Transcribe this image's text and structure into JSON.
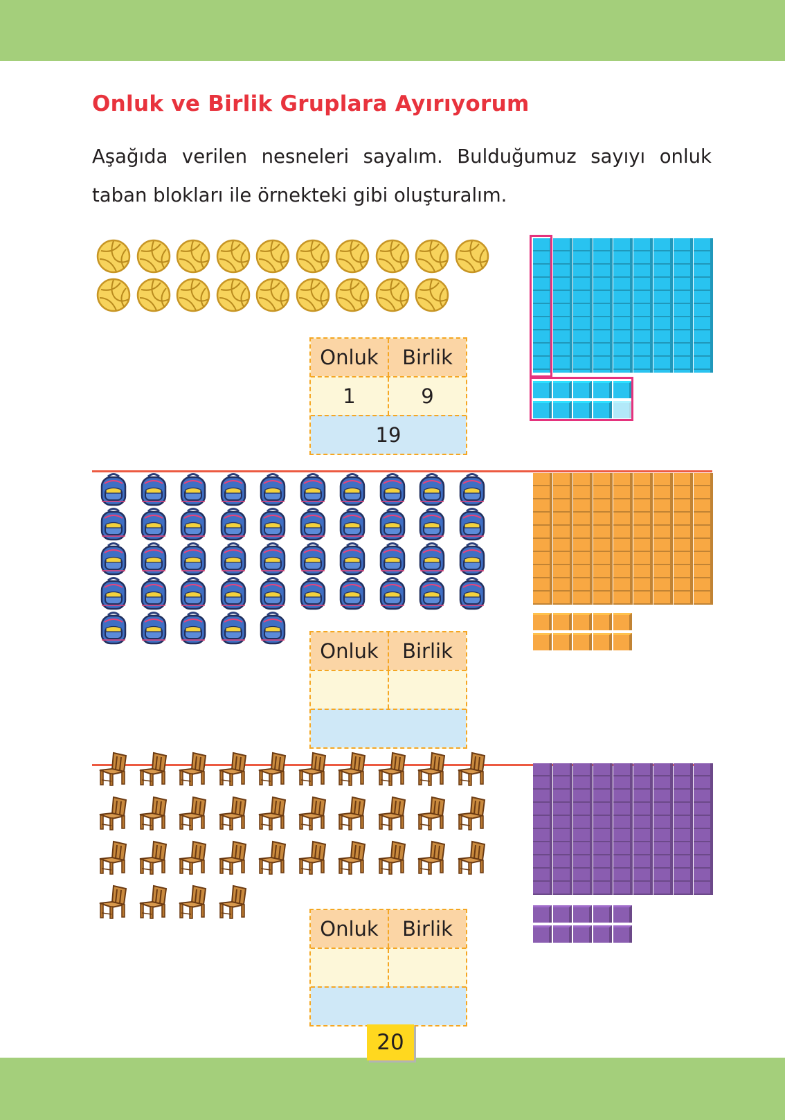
{
  "page": {
    "title": "Onluk ve Birlik Gruplara Ayırıyorum",
    "instruction": "Aşağıda verilen nesneleri sayalım. Bulduğumuz sayıyı onluk taban blokları ile örnekteki gibi oluşturalım.",
    "page_number": "20"
  },
  "sections": [
    {
      "object": "volleyball",
      "count": 19,
      "tens": 1,
      "ones": 9,
      "block_color": "#29c3f0",
      "table": {
        "onluk_label": "Onluk",
        "birlik_label": "Birlik",
        "onluk_value": "1",
        "birlik_value": "9",
        "total": "19"
      }
    },
    {
      "object": "backpack",
      "count": 45,
      "tens": 9,
      "ones": 10,
      "block_color": "#f8a843",
      "table": {
        "onluk_label": "Onluk",
        "birlik_label": "Birlik",
        "onluk_value": "",
        "birlik_value": "",
        "total": ""
      }
    },
    {
      "object": "chair",
      "count": 34,
      "tens": 9,
      "ones": 10,
      "block_color": "#8a5db0",
      "table": {
        "onluk_label": "Onluk",
        "birlik_label": "Birlik",
        "onluk_value": "",
        "birlik_value": "",
        "total": ""
      }
    }
  ],
  "colors": {
    "band": "#a4cf7b",
    "title": "#e8333d",
    "divider": "#ec5a41",
    "highlight": "#e5337d",
    "page_badge": "#ffd81f"
  }
}
